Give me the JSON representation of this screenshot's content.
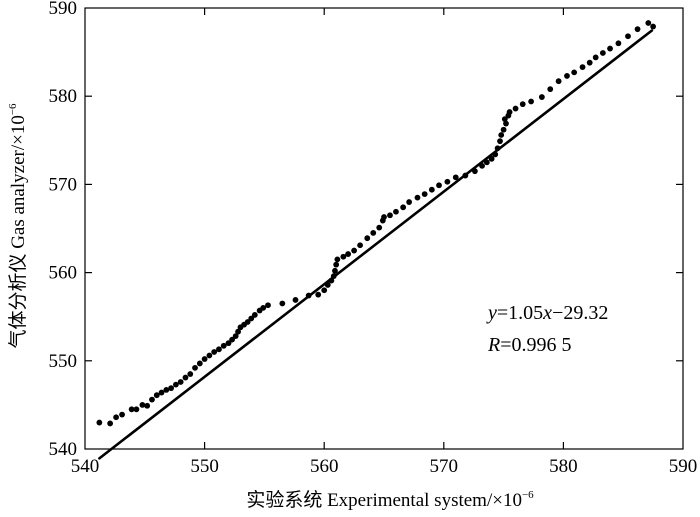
{
  "chart_data": {
    "type": "scatter",
    "xlabel": "实验系统 Experimental system/×10",
    "xlabel_exp": "−6",
    "ylabel": "气体分析仪 Gas analyzer/×10",
    "ylabel_exp": "−6",
    "xlim": [
      540,
      590
    ],
    "ylim": [
      540,
      590
    ],
    "xticks": [
      "540",
      "550",
      "560",
      "570",
      "580",
      "590"
    ],
    "yticks": [
      "540",
      "550",
      "560",
      "570",
      "580",
      "590"
    ],
    "grid": false,
    "legend": "none",
    "annotation": {
      "equation_y": "y",
      "equation_x": "x",
      "equation_a": "1.05",
      "equation_b": "−29.32",
      "r_symbol": "R",
      "r_value": "0.996 5"
    },
    "fit_line": {
      "slope": 1.05,
      "intercept": -29.32,
      "x_range": [
        541.2,
        587.4
      ]
    },
    "colors": {
      "points": "#000000",
      "line": "#000000"
    },
    "series": [
      {
        "points": [
          [
            541.2,
            543.0
          ],
          [
            542.1,
            542.9
          ],
          [
            542.6,
            543.6
          ],
          [
            543.1,
            543.9
          ],
          [
            543.9,
            544.5
          ],
          [
            544.3,
            544.5
          ],
          [
            544.8,
            545.0
          ],
          [
            545.2,
            544.9
          ],
          [
            545.6,
            545.6
          ],
          [
            546.0,
            546.1
          ],
          [
            546.4,
            546.4
          ],
          [
            546.8,
            546.7
          ],
          [
            547.2,
            546.9
          ],
          [
            547.6,
            547.3
          ],
          [
            548.0,
            547.6
          ],
          [
            548.4,
            548.1
          ],
          [
            548.8,
            548.5
          ],
          [
            549.2,
            549.2
          ],
          [
            549.6,
            549.7
          ],
          [
            550.0,
            550.2
          ],
          [
            550.4,
            550.6
          ],
          [
            550.8,
            551.0
          ],
          [
            551.2,
            551.3
          ],
          [
            551.6,
            551.7
          ],
          [
            552.0,
            552.0
          ],
          [
            552.3,
            552.4
          ],
          [
            552.6,
            552.8
          ],
          [
            552.8,
            553.3
          ],
          [
            553.0,
            553.8
          ],
          [
            553.3,
            554.1
          ],
          [
            553.6,
            554.4
          ],
          [
            553.9,
            554.8
          ],
          [
            554.2,
            555.2
          ],
          [
            554.6,
            555.7
          ],
          [
            554.9,
            556.0
          ],
          [
            555.3,
            556.3
          ],
          [
            556.5,
            556.5
          ],
          [
            557.6,
            556.9
          ],
          [
            558.7,
            557.4
          ],
          [
            559.5,
            557.5
          ],
          [
            560.0,
            558.0
          ],
          [
            560.3,
            558.6
          ],
          [
            560.6,
            559.1
          ],
          [
            560.8,
            559.6
          ],
          [
            560.9,
            560.2
          ],
          [
            561.0,
            560.9
          ],
          [
            561.1,
            561.5
          ],
          [
            561.6,
            561.8
          ],
          [
            562.0,
            562.1
          ],
          [
            562.5,
            562.5
          ],
          [
            563.0,
            563.1
          ],
          [
            563.6,
            563.9
          ],
          [
            564.1,
            564.5
          ],
          [
            564.6,
            565.1
          ],
          [
            564.9,
            565.9
          ],
          [
            565.0,
            566.3
          ],
          [
            565.5,
            566.5
          ],
          [
            566.0,
            566.9
          ],
          [
            566.6,
            567.4
          ],
          [
            567.1,
            568.0
          ],
          [
            567.8,
            568.5
          ],
          [
            568.4,
            568.9
          ],
          [
            569.0,
            569.4
          ],
          [
            569.6,
            569.9
          ],
          [
            570.3,
            570.3
          ],
          [
            571.0,
            570.8
          ],
          [
            571.8,
            571.0
          ],
          [
            572.6,
            571.5
          ],
          [
            573.2,
            572.1
          ],
          [
            573.6,
            572.5
          ],
          [
            574.0,
            572.9
          ],
          [
            574.3,
            573.4
          ],
          [
            574.5,
            574.1
          ],
          [
            574.7,
            574.9
          ],
          [
            574.8,
            575.6
          ],
          [
            575.0,
            576.2
          ],
          [
            575.2,
            576.9
          ],
          [
            575.1,
            577.4
          ],
          [
            575.4,
            577.8
          ],
          [
            575.5,
            578.2
          ],
          [
            576.0,
            578.6
          ],
          [
            576.6,
            579.1
          ],
          [
            577.3,
            579.4
          ],
          [
            578.2,
            579.9
          ],
          [
            578.9,
            580.8
          ],
          [
            579.6,
            581.7
          ],
          [
            580.3,
            582.3
          ],
          [
            580.9,
            582.7
          ],
          [
            581.6,
            583.3
          ],
          [
            582.2,
            583.8
          ],
          [
            582.7,
            584.4
          ],
          [
            583.3,
            584.9
          ],
          [
            583.9,
            585.4
          ],
          [
            584.6,
            586.0
          ],
          [
            585.4,
            586.8
          ],
          [
            586.2,
            587.6
          ],
          [
            587.1,
            588.3
          ],
          [
            587.5,
            587.9
          ]
        ]
      }
    ]
  }
}
